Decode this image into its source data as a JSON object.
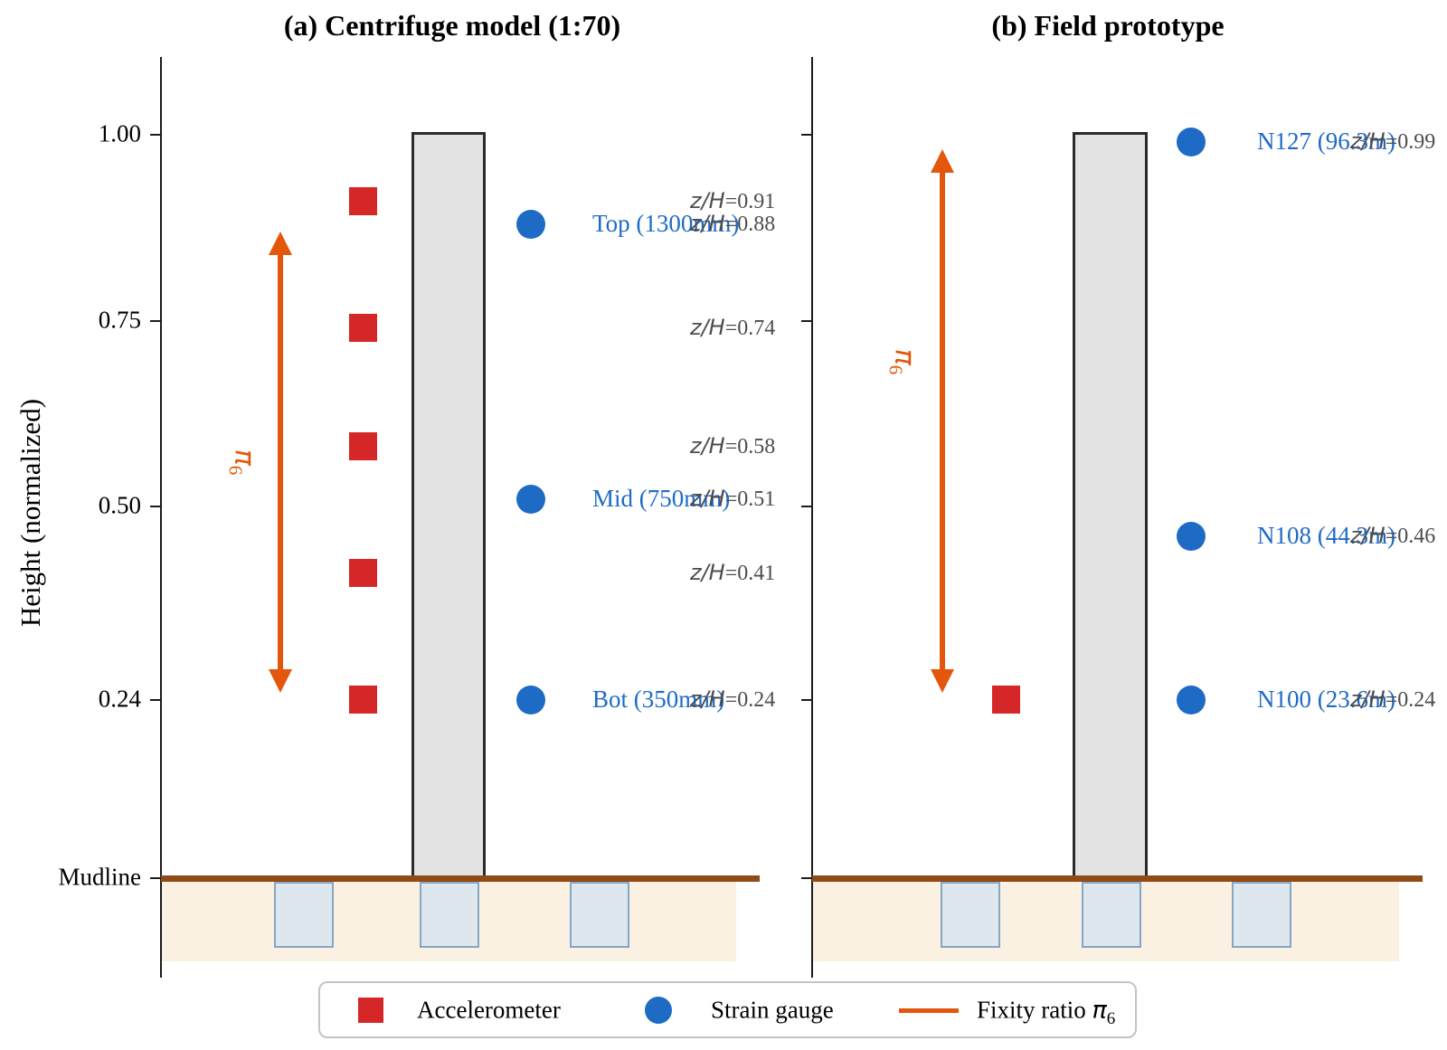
{
  "symbols": {
    "zh_italic": "z/H",
    "pi": "π",
    "pi_sub": "6"
  },
  "colors": {
    "accelerometer": "#d62728",
    "strain_gauge": "#1e6bc6",
    "fixity_arrow": "#e4560b",
    "annotation_gray": "#4d4d4d",
    "tower_fill": "#e3e3e3",
    "tower_border": "#2b2b2b",
    "soil": "#faf1e2",
    "mudline": "#8f4a15",
    "pile_fill": "#dde7ed",
    "pile_border": "#87a5c5"
  },
  "legend": {
    "accelerometer": "Accelerometer",
    "strain_gauge": "Strain gauge",
    "fixity_prefix": "Fixity ratio"
  },
  "chart_data": {
    "type": "scatter",
    "ylabel": "Height (normalized)",
    "ylim": [
      0,
      1.1
    ],
    "grid": false,
    "legend_position": "bottom",
    "yticks": [
      1.0,
      0.75,
      0.5,
      0.24,
      0
    ],
    "ytick_labels": [
      "1.00",
      "0.75",
      "0.50",
      "0.24",
      "Mudline"
    ],
    "panels": [
      {
        "id": "a",
        "title": "(a) Centrifuge model (1:70)",
        "accelerometers_zH": [
          0.91,
          0.74,
          0.58,
          0.41,
          0.24
        ],
        "strain_gauges": [
          {
            "label": "Top (1300mm)",
            "zH": 0.88
          },
          {
            "label": "Mid (750mm)",
            "zH": 0.51
          },
          {
            "label": "Bot (350mm)",
            "zH": 0.24
          }
        ],
        "zH_annotations": [
          0.91,
          0.88,
          0.74,
          0.58,
          0.51,
          0.41,
          0.24
        ],
        "fixity_arrow_zH_span": [
          0.87,
          0.25
        ]
      },
      {
        "id": "b",
        "title": "(b) Field prototype",
        "accelerometers_zH": [
          0.24
        ],
        "strain_gauges": [
          {
            "label": "N127 (96.3m)",
            "zH": 0.99
          },
          {
            "label": "N108 (44.3m)",
            "zH": 0.46
          },
          {
            "label": "N100 (23.6m)",
            "zH": 0.24
          }
        ],
        "zH_annotations": [
          0.99,
          0.46,
          0.24
        ],
        "fixity_arrow_zH_span": [
          0.98,
          0.25
        ]
      }
    ]
  }
}
